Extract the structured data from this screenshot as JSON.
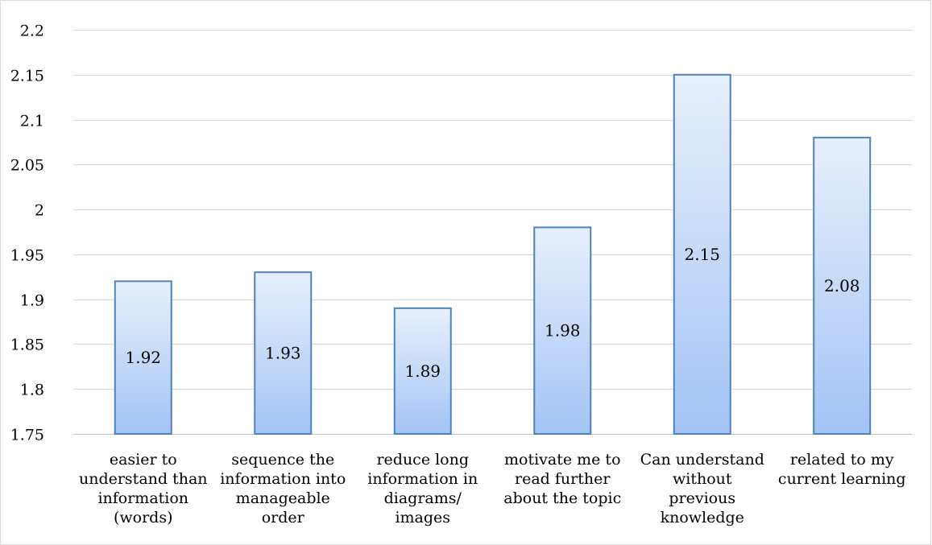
{
  "chart_data": {
    "type": "bar",
    "categories": [
      [
        "easier to",
        "understand than",
        "information",
        "(words)"
      ],
      [
        "sequence the",
        "information into",
        "manageable",
        "order"
      ],
      [
        "reduce long",
        "information in",
        "diagrams/",
        "images"
      ],
      [
        "motivate me to",
        "read further",
        "about the topic"
      ],
      [
        "Can understand",
        "without",
        "previous",
        "knowledge"
      ],
      [
        "related to my",
        "current learning"
      ]
    ],
    "values": [
      1.92,
      1.93,
      1.89,
      1.98,
      2.15,
      2.08
    ],
    "data_labels": [
      "1.92",
      "1.93",
      "1.89",
      "1.98",
      "2.15",
      "2.08"
    ],
    "ylim": [
      1.75,
      2.2
    ],
    "yticks": [
      "1.75",
      "1.8",
      "1.85",
      "1.9",
      "1.95",
      "2",
      "2.05",
      "2.1",
      "2.15",
      "2.2"
    ],
    "grid": true,
    "legend": "none",
    "colors": {
      "bar_top": "#e8f0fc",
      "bar_bottom": "#a3c4f5",
      "bar_border": "#4f81bd",
      "grid": "#d9d9d9"
    }
  }
}
